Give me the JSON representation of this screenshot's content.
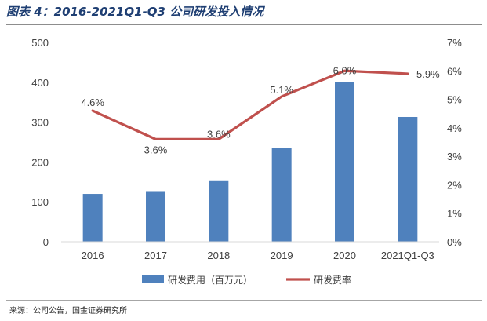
{
  "header": {
    "title": "图表 4：2016-2021Q1-Q3 公司研发投入情况"
  },
  "footer": {
    "source": "来源：公司公告，国金证券研究所"
  },
  "chart_data": {
    "type": "bar",
    "title": "2016-2021Q1-Q3 公司研发投入情况",
    "categories": [
      "2016",
      "2017",
      "2018",
      "2019",
      "2020",
      "2021Q1-Q3"
    ],
    "series": [
      {
        "name": "研发费用（百万元）",
        "type": "bar",
        "axis": "left",
        "values": [
          120,
          127,
          154,
          235,
          401,
          313
        ],
        "color": "#4f81bd"
      },
      {
        "name": "研发费率",
        "type": "line",
        "axis": "right",
        "values": [
          4.6,
          3.6,
          3.6,
          5.1,
          6.0,
          5.9
        ],
        "labels": [
          "4.6%",
          "3.6%",
          "3.6%",
          "5.1%",
          "6.0%",
          "5.9%"
        ],
        "color": "#c0504d"
      }
    ],
    "left_axis": {
      "ylim": [
        0,
        500
      ],
      "ticks": [
        0,
        100,
        200,
        300,
        400,
        500
      ],
      "tick_labels": [
        "0",
        "100",
        "200",
        "300",
        "400",
        "500"
      ]
    },
    "right_axis": {
      "ylim": [
        0,
        7
      ],
      "ticks": [
        0,
        1,
        2,
        3,
        4,
        5,
        6,
        7
      ],
      "tick_labels": [
        "0%",
        "1%",
        "2%",
        "3%",
        "4%",
        "5%",
        "6%",
        "7%"
      ]
    },
    "legend": {
      "placement": "bottom-center"
    },
    "grid": false
  }
}
